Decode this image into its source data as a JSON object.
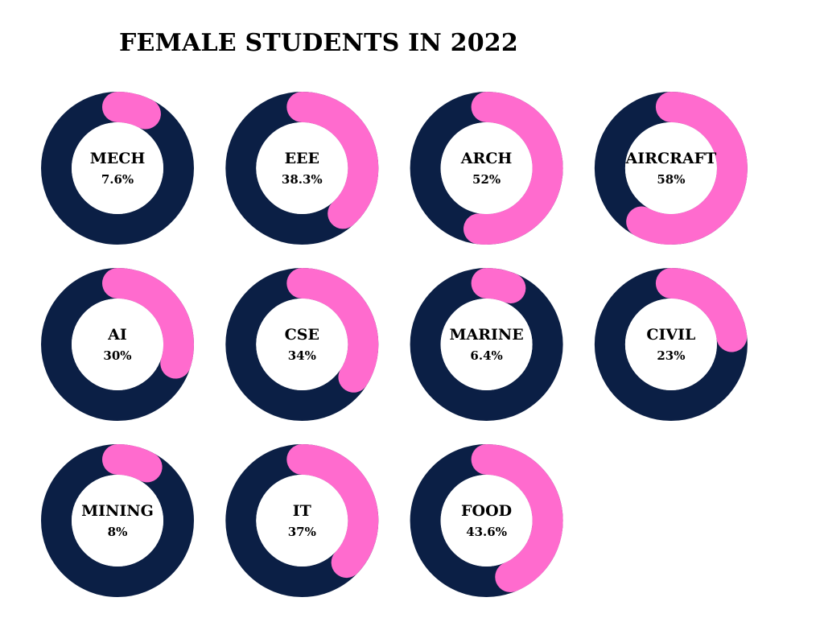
{
  "chart_data": {
    "type": "donut",
    "title": "FEMALE STUDENTS IN 2022",
    "colors": {
      "track": "#0b1f45",
      "value": "#ff6bce",
      "center": "#ffffff"
    },
    "items": [
      {
        "label": "MECH",
        "value": 7.6,
        "value_label": "7.6%"
      },
      {
        "label": "EEE",
        "value": 38.3,
        "value_label": "38.3%"
      },
      {
        "label": "ARCH",
        "value": 52,
        "value_label": "52%"
      },
      {
        "label": "AIRCRAFT",
        "value": 58,
        "value_label": "58%"
      },
      {
        "label": "AI",
        "value": 30,
        "value_label": "30%"
      },
      {
        "label": "CSE",
        "value": 34,
        "value_label": "34%"
      },
      {
        "label": "MARINE",
        "value": 6.4,
        "value_label": "6.4%"
      },
      {
        "label": "CIVIL",
        "value": 23,
        "value_label": "23%"
      },
      {
        "label": "MINING",
        "value": 8,
        "value_label": "8%"
      },
      {
        "label": "IT",
        "value": 37,
        "value_label": "37%"
      },
      {
        "label": "FOOD",
        "value": 43.6,
        "value_label": "43.6%"
      }
    ]
  }
}
